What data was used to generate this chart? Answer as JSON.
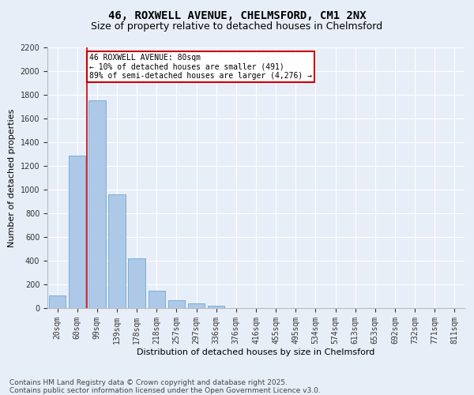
{
  "title_line1": "46, ROXWELL AVENUE, CHELMSFORD, CM1 2NX",
  "title_line2": "Size of property relative to detached houses in Chelmsford",
  "xlabel": "Distribution of detached houses by size in Chelmsford",
  "ylabel": "Number of detached properties",
  "annotation_title": "46 ROXWELL AVENUE: 80sqm",
  "annotation_line2": "← 10% of detached houses are smaller (491)",
  "annotation_line3": "89% of semi-detached houses are larger (4,276) →",
  "footer_line1": "Contains HM Land Registry data © Crown copyright and database right 2025.",
  "footer_line2": "Contains public sector information licensed under the Open Government Licence v3.0.",
  "categories": [
    "20sqm",
    "60sqm",
    "99sqm",
    "139sqm",
    "178sqm",
    "218sqm",
    "257sqm",
    "297sqm",
    "336sqm",
    "376sqm",
    "416sqm",
    "455sqm",
    "495sqm",
    "534sqm",
    "574sqm",
    "613sqm",
    "653sqm",
    "692sqm",
    "732sqm",
    "771sqm",
    "811sqm"
  ],
  "bar_values": [
    107,
    1285,
    1755,
    960,
    420,
    150,
    70,
    40,
    22,
    0,
    0,
    0,
    0,
    0,
    0,
    0,
    0,
    0,
    0,
    0,
    0
  ],
  "bar_color": "#aec8e8",
  "bar_edge_color": "#6aaad4",
  "vline_x": 1.5,
  "vline_color": "#cc0000",
  "annotation_box_color": "#cc0000",
  "annotation_text_color": "#000000",
  "background_color": "#e8eef8",
  "plot_bg_color": "#e8eef8",
  "ylim": [
    0,
    2200
  ],
  "yticks": [
    0,
    200,
    400,
    600,
    800,
    1000,
    1200,
    1400,
    1600,
    1800,
    2000,
    2200
  ],
  "title_fontsize": 10,
  "subtitle_fontsize": 9,
  "axis_label_fontsize": 8,
  "tick_fontsize": 7,
  "footer_fontsize": 6.5
}
